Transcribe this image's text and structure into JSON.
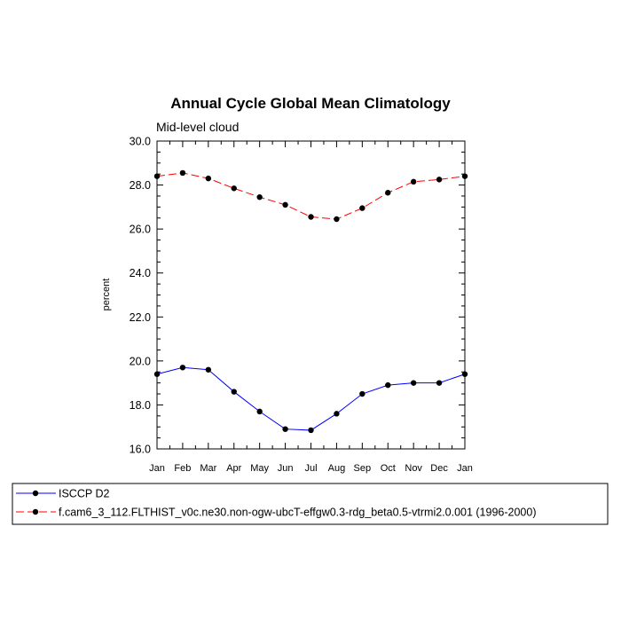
{
  "chart_data": {
    "type": "line",
    "title": "Annual Cycle Global Mean Climatology",
    "subtitle": "Mid-level cloud",
    "xlabel": "",
    "ylabel": "percent",
    "categories": [
      "Jan",
      "Feb",
      "Mar",
      "Apr",
      "May",
      "Jun",
      "Jul",
      "Aug",
      "Sep",
      "Oct",
      "Nov",
      "Dec",
      "Jan"
    ],
    "ylim": [
      16.0,
      30.0
    ],
    "yticks": [
      "16.0",
      "18.0",
      "20.0",
      "22.0",
      "24.0",
      "26.0",
      "28.0",
      "30.0"
    ],
    "grid": false,
    "legend_position": "bottom",
    "series": [
      {
        "name": "ISCCP D2",
        "color": "#0000ff",
        "dash": "solid",
        "marker": "circle",
        "values": [
          19.4,
          19.7,
          19.6,
          18.6,
          17.7,
          16.9,
          16.85,
          17.6,
          18.5,
          18.9,
          19.0,
          19.0,
          19.4
        ]
      },
      {
        "name": "f.cam6_3_112.FLTHIST_v0c.ne30.non-ogw-ubcT-effgw0.3-rdg_beta0.5-vtrmi2.0.001 (1996-2000)",
        "color": "#ff0000",
        "dash": "dashed",
        "marker": "circle",
        "values": [
          28.4,
          28.55,
          28.3,
          27.85,
          27.45,
          27.1,
          26.55,
          26.45,
          26.95,
          27.65,
          28.15,
          28.25,
          28.4
        ]
      }
    ]
  }
}
